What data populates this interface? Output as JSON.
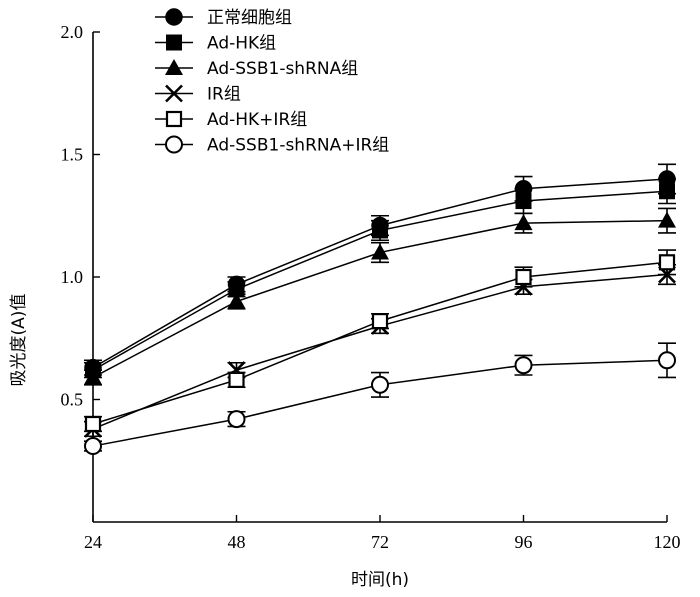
{
  "chart_data": {
    "type": "line",
    "x": [
      24,
      48,
      72,
      96,
      120
    ],
    "xlabel": "时间(h)",
    "ylabel": "吸光度(A)值",
    "xlim": [
      24,
      120
    ],
    "ylim": [
      0,
      2.0
    ],
    "yticks": [
      0.5,
      1.0,
      1.5,
      2.0
    ],
    "grid": false,
    "legend_position": "top-left",
    "series": [
      {
        "name": "正常细胞组",
        "marker": "filled-circle",
        "values": [
          0.63,
          0.97,
          1.21,
          1.36,
          1.4
        ],
        "errors": [
          0.03,
          0.03,
          0.04,
          0.05,
          0.06
        ]
      },
      {
        "name": "Ad-HK组",
        "marker": "filled-square",
        "values": [
          0.62,
          0.95,
          1.19,
          1.31,
          1.35
        ],
        "errors": [
          0.03,
          0.03,
          0.04,
          0.05,
          0.05
        ]
      },
      {
        "name": "Ad-SSB1-shRNA组",
        "marker": "filled-triangle",
        "values": [
          0.59,
          0.9,
          1.1,
          1.22,
          1.23
        ],
        "errors": [
          0.03,
          0.03,
          0.04,
          0.04,
          0.05
        ]
      },
      {
        "name": "IR组",
        "marker": "cross",
        "values": [
          0.38,
          0.62,
          0.8,
          0.96,
          1.01
        ],
        "errors": [
          0.03,
          0.03,
          0.03,
          0.03,
          0.04
        ]
      },
      {
        "name": "Ad-HK+IR组",
        "marker": "open-square",
        "values": [
          0.4,
          0.58,
          0.82,
          1.0,
          1.06
        ],
        "errors": [
          0.03,
          0.03,
          0.03,
          0.04,
          0.05
        ]
      },
      {
        "name": "Ad-SSB1-shRNA+IR组",
        "marker": "open-circle",
        "values": [
          0.31,
          0.42,
          0.56,
          0.64,
          0.66
        ],
        "errors": [
          0.02,
          0.03,
          0.05,
          0.04,
          0.07
        ]
      }
    ]
  }
}
